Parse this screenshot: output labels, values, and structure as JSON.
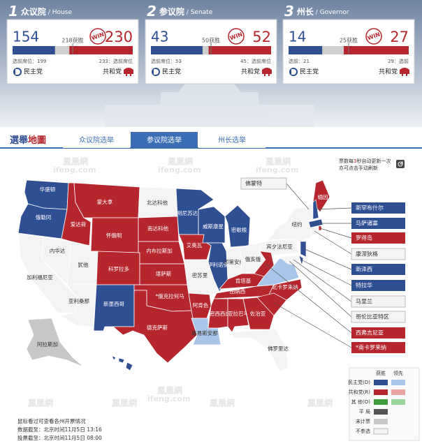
{
  "races": [
    {
      "number": "1",
      "name": "众议院",
      "en": " / House",
      "dem": 154,
      "rep": 230,
      "win": 218,
      "win_label": "218获胜",
      "win_badge": "WIN",
      "winner": "rep",
      "dem_before": "选前席位：199",
      "rep_before": "233：选前席位",
      "dem_party": "民主党",
      "rep_party": "共和党"
    },
    {
      "number": "2",
      "name": "参议院",
      "en": " / Senate",
      "dem": 43,
      "rep": 52,
      "win": 50,
      "win_label": "50获胜",
      "win_badge": "WIN",
      "winner": "rep",
      "dem_before": "选前席位：53",
      "rep_before": "45：选前席位",
      "dem_party": "民主党",
      "rep_party": "共和党"
    },
    {
      "number": "3",
      "name": "州长",
      "en": " / Governor",
      "dem": 14,
      "rep": 27,
      "win": 25,
      "win_label": "25获胜",
      "win_badge": "WIN",
      "winner": "rep",
      "dem_before": "选前：21",
      "rep_before": "29：选前",
      "dem_party": "民主党",
      "rep_party": "共和党"
    }
  ],
  "colors": {
    "dem": "#2f4f93",
    "rep": "#b5262d",
    "dem_lead": "#a9c6ea",
    "rep_lead": "#eaa3a3",
    "other": "#3e9a3e",
    "other_lead": "#98d598",
    "tie": "#555555",
    "uncounted": "#c8c8c8",
    "none": "#f4f4f4",
    "bar_gap": "#cfcfcf",
    "tab_active": "#3b6db5"
  },
  "tabs": {
    "logo": [
      "選舉",
      "地圖"
    ],
    "items": [
      "众议院选举",
      "参议院选举",
      "州长选举"
    ],
    "active": 1
  },
  "refresh_note": {
    "line1": [
      "票数每",
      "3",
      "秒自动更新一次"
    ],
    "line2": "亦可点击手动刷新"
  },
  "watermark": {
    "cn": "鳳凰網",
    "en": "ifeng.com"
  },
  "states": [
    {
      "label": "华盛顿",
      "status": "dem"
    },
    {
      "label": "俄勒冈",
      "status": "dem"
    },
    {
      "label": "加利福尼亚",
      "status": "none"
    },
    {
      "label": "内华达",
      "status": "none"
    },
    {
      "label": "爱达荷",
      "status": "rep"
    },
    {
      "label": "蒙大拿",
      "status": "rep"
    },
    {
      "label": "怀俄明",
      "status": "rep"
    },
    {
      "label": "犹他",
      "status": "none"
    },
    {
      "label": "亚利桑那",
      "status": "none"
    },
    {
      "label": "科罗拉多",
      "status": "rep"
    },
    {
      "label": "新墨西哥",
      "status": "dem"
    },
    {
      "label": "北达科他",
      "status": "none"
    },
    {
      "label": "南达科他",
      "status": "rep"
    },
    {
      "label": "内布拉斯加",
      "status": "rep"
    },
    {
      "label": "堪萨斯",
      "status": "rep"
    },
    {
      "label": "*俄克拉何马",
      "status": "rep"
    },
    {
      "label": "德克萨斯",
      "status": "rep"
    },
    {
      "label": "明尼苏达",
      "status": "dem"
    },
    {
      "label": "艾奥瓦",
      "status": "rep"
    },
    {
      "label": "密苏里",
      "status": "none"
    },
    {
      "label": "阿肯色",
      "status": "rep"
    },
    {
      "label": "路易斯安那",
      "status": "dem_lead"
    },
    {
      "label": "威斯康星",
      "status": "dem"
    },
    {
      "label": "伊利诺伊",
      "status": "dem"
    },
    {
      "label": "密歇根",
      "status": "dem"
    },
    {
      "label": "印第安纳",
      "status": "none"
    },
    {
      "label": "俄亥俄",
      "status": "none"
    },
    {
      "label": "肯塔基",
      "status": "rep"
    },
    {
      "label": "田纳西",
      "status": "rep"
    },
    {
      "label": "密西西比",
      "status": "rep"
    },
    {
      "label": "亚拉巴马",
      "status": "rep"
    },
    {
      "label": "佐治亚",
      "status": "rep"
    },
    {
      "label": "佛罗里达",
      "status": "none"
    },
    {
      "label": "北卡罗来纳",
      "status": "rep"
    },
    {
      "label": null,
      "status": "dem_lead"
    },
    {
      "label": "宾夕法尼亚",
      "status": "none"
    },
    {
      "label": "纽约",
      "status": "none"
    },
    {
      "label": "缅因",
      "status": "rep"
    },
    {
      "label": "阿拉斯加",
      "status": "uncounted"
    },
    {
      "label": "夏威夷",
      "status": "dem"
    }
  ],
  "callouts": [
    {
      "label": "佛蒙特",
      "status": "none"
    },
    {
      "label": "新罕布什尔",
      "status": "dem"
    },
    {
      "label": "马萨诸塞",
      "status": "dem"
    },
    {
      "label": "罗得岛",
      "status": "rep"
    },
    {
      "label": "康涅狄格",
      "status": "none"
    },
    {
      "label": "新泽西",
      "status": "dem"
    },
    {
      "label": "特拉华",
      "status": "dem"
    },
    {
      "label": "马里兰",
      "status": "none"
    },
    {
      "label": "哥伦比亚特区",
      "status": "none"
    },
    {
      "label": "西弗吉尼亚",
      "status": "rep"
    },
    {
      "label": "*南卡罗来纳",
      "status": "rep"
    }
  ],
  "legend": {
    "headers": [
      "获胜",
      "领先"
    ],
    "rows": [
      {
        "label": "民主党(D)",
        "colors": [
          "dem",
          "dem_lead"
        ]
      },
      {
        "label": "共和党(R)",
        "colors": [
          "rep",
          "rep_lead"
        ]
      },
      {
        "label": "其 他(O)",
        "colors": [
          "other",
          "other_lead"
        ]
      },
      {
        "label": "平 局",
        "colors": [
          "tie"
        ]
      },
      {
        "label": "未计票",
        "colors": [
          "uncounted"
        ]
      },
      {
        "label": "不参选",
        "colors": [
          "none"
        ]
      }
    ]
  },
  "footer": [
    "鼠标看过可查看各州开票情况",
    "数据截至：北京时间11月5日 13:16",
    "投票截至：北京时间11月5日 08:00"
  ]
}
